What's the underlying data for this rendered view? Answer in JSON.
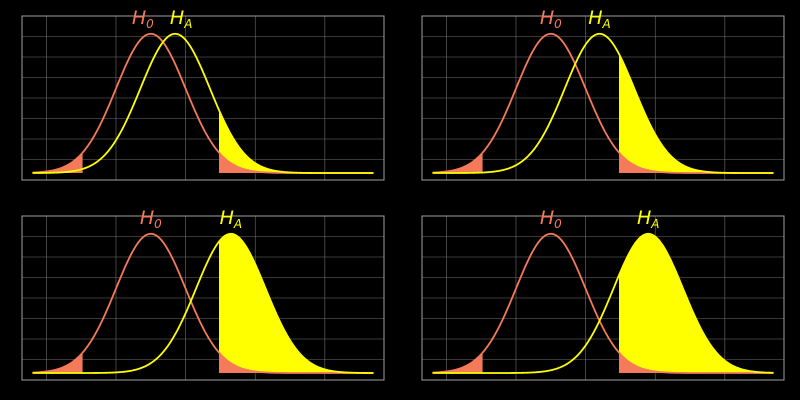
{
  "colors": {
    "h0": "#f47a5a",
    "ha": "#ffff00",
    "grid": "#6e6e6e",
    "frame": "#a0a0a0",
    "background": "#000000"
  },
  "chart_data": [
    {
      "type": "area",
      "panel": "top-left",
      "h0_label": {
        "main": "H",
        "sub": "0"
      },
      "ha_label": {
        "main": "H",
        "sub": "A"
      },
      "xlim": [
        -3.7,
        6.7
      ],
      "ylim": [
        -0.02,
        0.45
      ],
      "h0": {
        "mean": 0,
        "sd": 1
      },
      "ha": {
        "mean": 0.7,
        "sd": 1
      },
      "critical_values": [
        -1.96,
        1.96
      ],
      "grid": true
    },
    {
      "type": "area",
      "panel": "top-right",
      "h0_label": {
        "main": "H",
        "sub": "0"
      },
      "ha_label": {
        "main": "H",
        "sub": "A"
      },
      "xlim": [
        -3.7,
        6.7
      ],
      "ylim": [
        -0.02,
        0.45
      ],
      "h0": {
        "mean": 0,
        "sd": 1
      },
      "ha": {
        "mean": 1.4,
        "sd": 1
      },
      "critical_values": [
        -1.96,
        1.96
      ],
      "grid": true
    },
    {
      "type": "area",
      "panel": "bottom-left",
      "h0_label": {
        "main": "H",
        "sub": "0"
      },
      "ha_label": {
        "main": "H",
        "sub": "A"
      },
      "xlim": [
        -3.7,
        6.7
      ],
      "ylim": [
        -0.02,
        0.45
      ],
      "h0": {
        "mean": 0,
        "sd": 1
      },
      "ha": {
        "mean": 2.3,
        "sd": 1
      },
      "critical_values": [
        -1.96,
        1.96
      ],
      "grid": true
    },
    {
      "type": "area",
      "panel": "bottom-right",
      "h0_label": {
        "main": "H",
        "sub": "0"
      },
      "ha_label": {
        "main": "H",
        "sub": "A"
      },
      "xlim": [
        -3.7,
        6.7
      ],
      "ylim": [
        -0.02,
        0.45
      ],
      "h0": {
        "mean": 0,
        "sd": 1
      },
      "ha": {
        "mean": 2.8,
        "sd": 1
      },
      "critical_values": [
        -1.96,
        1.96
      ],
      "grid": true
    }
  ]
}
